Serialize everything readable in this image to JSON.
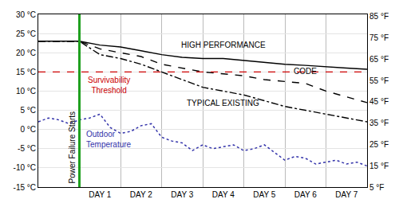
{
  "chart_data": {
    "type": "line",
    "grid": true,
    "xlim": [
      -1,
      7
    ],
    "xticks": [
      {
        "value": 0.5,
        "label": "DAY 1"
      },
      {
        "value": 1.5,
        "label": "DAY 2"
      },
      {
        "value": 2.5,
        "label": "DAY 3"
      },
      {
        "value": 3.5,
        "label": "DAY 4"
      },
      {
        "value": 4.5,
        "label": "DAY 5"
      },
      {
        "value": 5.5,
        "label": "DAY 6"
      },
      {
        "value": 6.5,
        "label": "DAY 7"
      }
    ],
    "ylim": [
      -15,
      30
    ],
    "yticks": [
      {
        "value": -15,
        "label": "-15 °C"
      },
      {
        "value": -10,
        "label": "-10 °C"
      },
      {
        "value": -5,
        "label": "-5 °C"
      },
      {
        "value": 0,
        "label": "0 °C"
      },
      {
        "value": 5,
        "label": "5 °C"
      },
      {
        "value": 10,
        "label": "10 °C"
      },
      {
        "value": 15,
        "label": "15 °C"
      },
      {
        "value": 20,
        "label": "20 °C"
      },
      {
        "value": 25,
        "label": "25 °C"
      },
      {
        "value": 30,
        "label": "30 °C"
      }
    ],
    "y2lim": [
      5,
      86
    ],
    "y2ticks": [
      {
        "value": 5,
        "label": "5 °F"
      },
      {
        "value": 15,
        "label": "15 °F"
      },
      {
        "value": 25,
        "label": "25 °F"
      },
      {
        "value": 35,
        "label": "35 °F"
      },
      {
        "value": 45,
        "label": "45 °F"
      },
      {
        "value": 55,
        "label": "55 °F"
      },
      {
        "value": 65,
        "label": "65 °F"
      },
      {
        "value": 75,
        "label": "75 °F"
      },
      {
        "value": 85,
        "label": "85 °F"
      }
    ],
    "series": [
      {
        "name": "HIGH PERFORMANCE",
        "color": "#000000",
        "line_style": "solid",
        "x": [
          -1,
          -0.5,
          0,
          0.5,
          1,
          1.5,
          2,
          2.5,
          3,
          3.5,
          4,
          4.5,
          5,
          5.5,
          6,
          6.5,
          7
        ],
        "values": [
          23,
          23,
          23,
          22,
          21.5,
          20.5,
          19.5,
          18.8,
          18.5,
          18.5,
          18,
          17.5,
          17,
          16.7,
          16.3,
          16,
          15.7
        ]
      },
      {
        "name": "CODE",
        "color": "#000000",
        "line_style": "dash",
        "x": [
          -1,
          -0.5,
          0,
          0.5,
          1,
          1.5,
          2,
          2.5,
          3,
          3.5,
          4,
          4.5,
          5,
          5.5,
          6,
          6.5,
          7
        ],
        "values": [
          23,
          23,
          23,
          21,
          20,
          19,
          17,
          16,
          15,
          14.5,
          14,
          13,
          12.5,
          12,
          10,
          8.5,
          7
        ]
      },
      {
        "name": "TYPICAL EXISTING",
        "color": "#000000",
        "line_style": "dashdot",
        "x": [
          -1,
          -0.5,
          0,
          0.5,
          1,
          1.5,
          2,
          2.5,
          3,
          3.5,
          4,
          4.5,
          5,
          5.5,
          6,
          6.5,
          7
        ],
        "values": [
          23,
          23,
          23,
          19.5,
          18.5,
          17,
          15,
          13,
          11,
          10,
          9,
          7.5,
          6,
          5,
          4,
          3,
          2
        ]
      },
      {
        "name": "Outdoor Temperature",
        "color": "#3333aa",
        "line_style": "dot",
        "x": [
          -1,
          -0.75,
          -0.5,
          -0.25,
          0,
          0.25,
          0.5,
          0.75,
          1,
          1.25,
          1.5,
          1.75,
          2,
          2.25,
          2.5,
          2.75,
          3,
          3.25,
          3.5,
          3.75,
          4,
          4.25,
          4.5,
          4.75,
          5,
          5.25,
          5.5,
          5.75,
          6,
          6.25,
          6.5,
          6.75,
          7
        ],
        "values": [
          2,
          3,
          2.5,
          1.5,
          2.5,
          3,
          4,
          0.5,
          -1,
          -0.5,
          1,
          1.5,
          -2,
          -3,
          -3.5,
          -5.5,
          -4,
          -5,
          -4.5,
          -4,
          -5.5,
          -5,
          -4,
          -6,
          -8,
          -7,
          -7.5,
          -9,
          -8.5,
          -8,
          -9,
          -8.5,
          -9.5
        ]
      }
    ],
    "threshold": {
      "value": 15,
      "label": "Survivability Threshold",
      "color": "#cc0000",
      "line_style": "dash"
    },
    "power_failure": {
      "x": 0,
      "label": "Power Failure Starts",
      "color": "#1fa01f"
    }
  }
}
